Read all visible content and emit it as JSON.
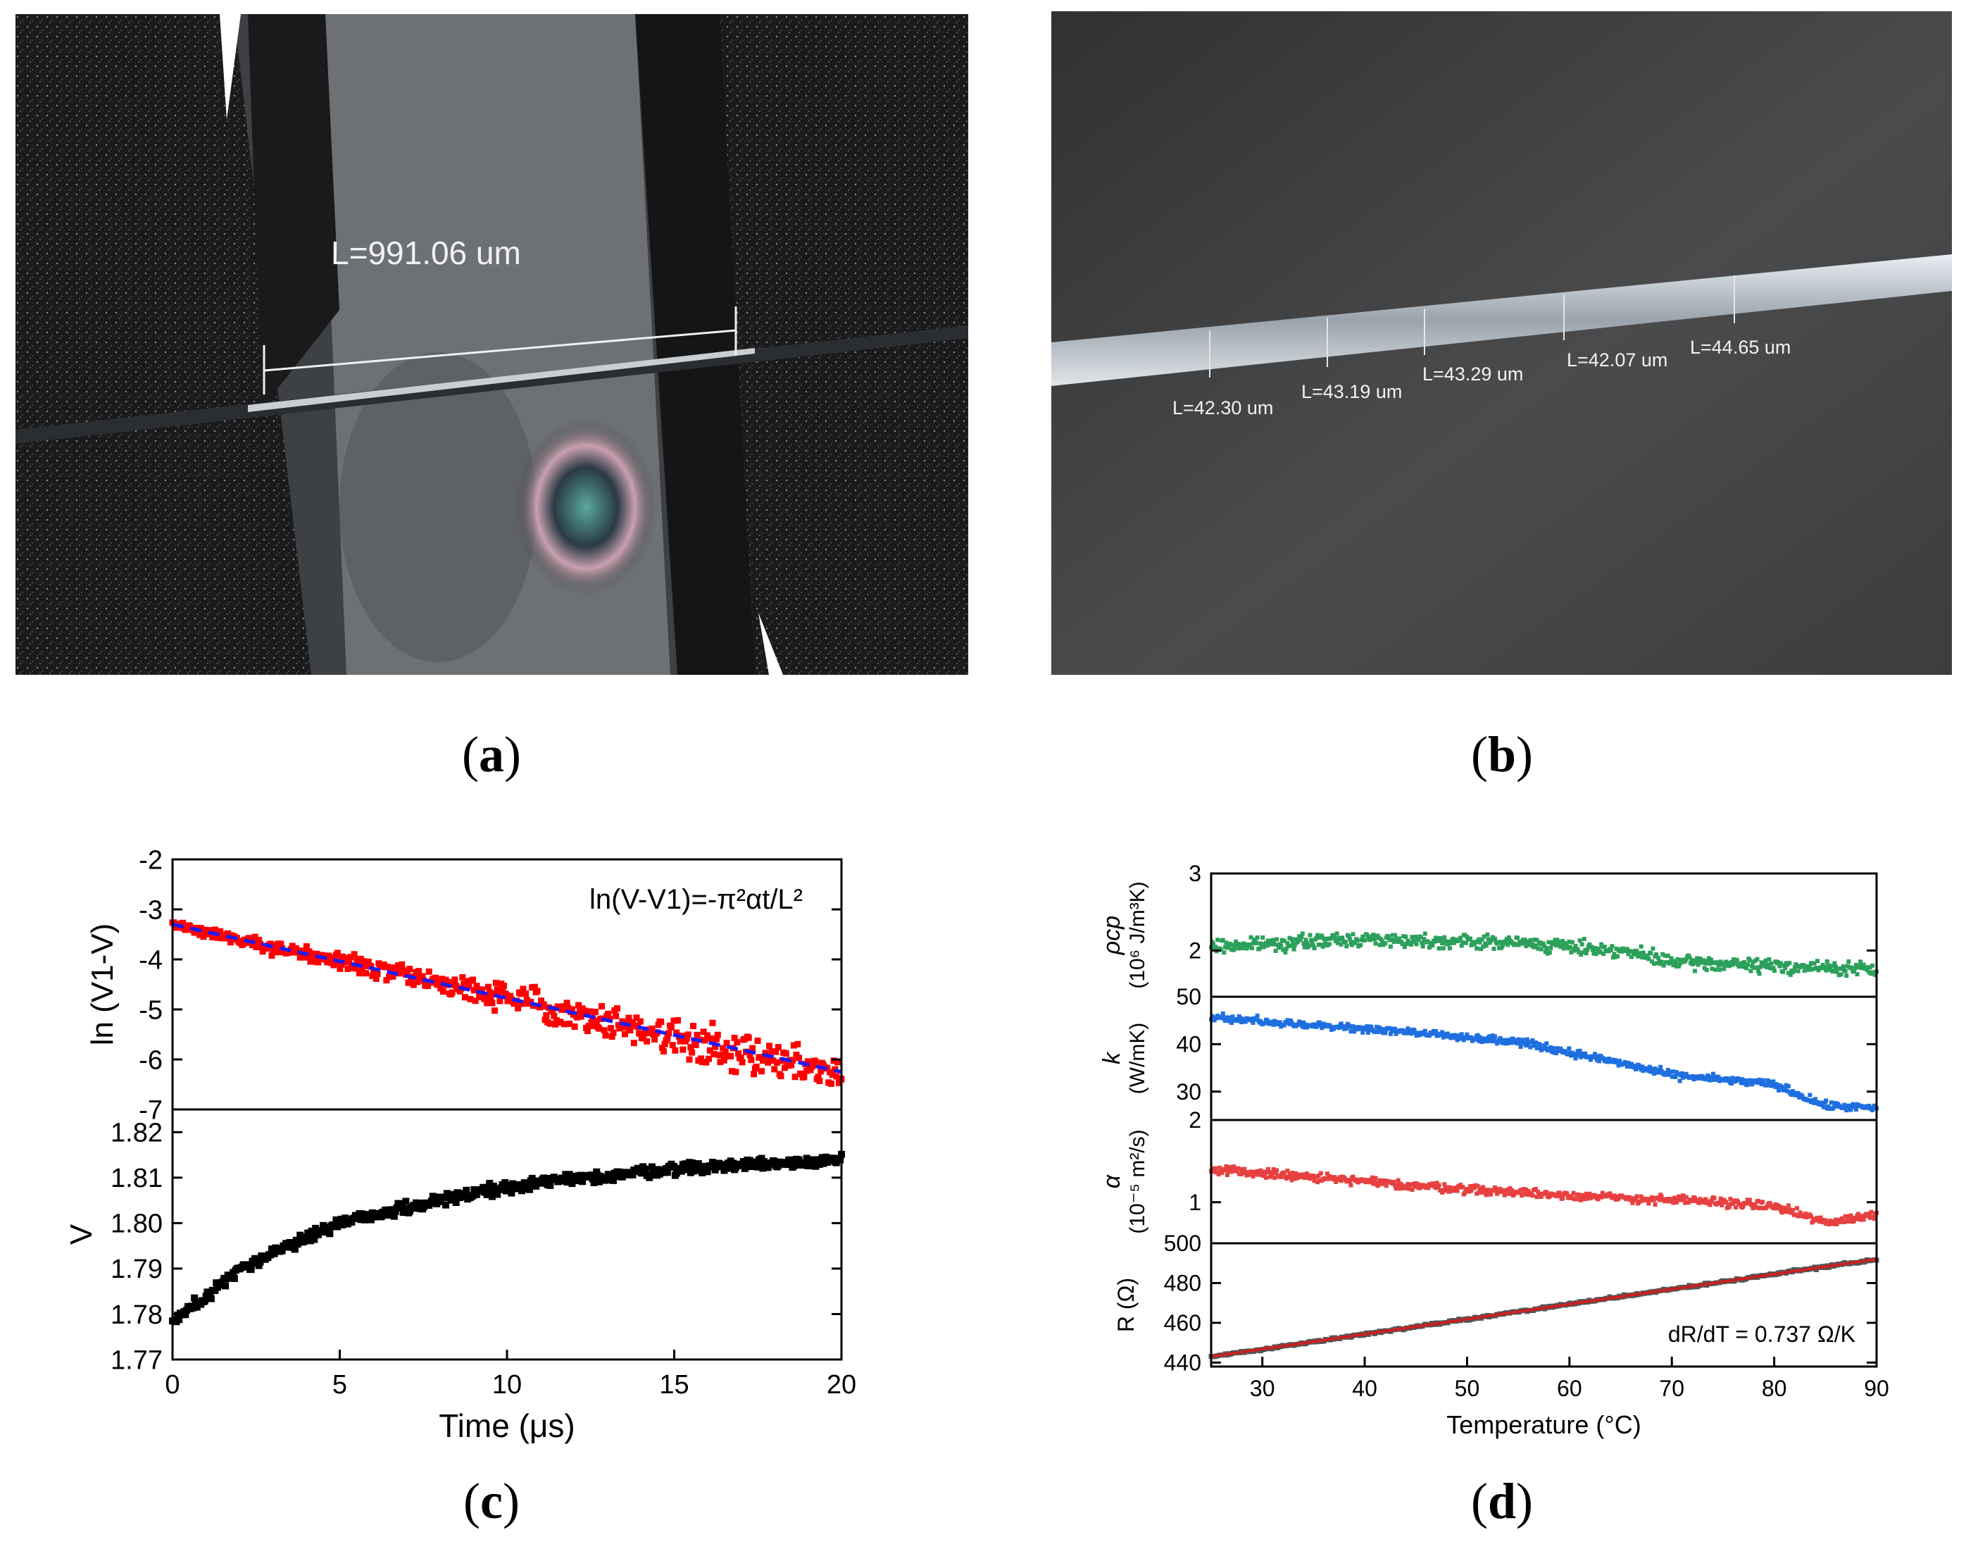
{
  "figure": {
    "captions": {
      "a": "a",
      "b": "b",
      "c": "c",
      "d": "d"
    }
  },
  "panel_a": {
    "measurement": "L=991.06 um"
  },
  "panel_b": {
    "measurements": [
      "L=42.30 um",
      "L=43.19 um",
      "L=43.29 um",
      "L=42.07 um",
      "L=44.65 um"
    ]
  },
  "chart_data": [
    {
      "panel": "c-top",
      "type": "scatter",
      "ylabel": "ln (V1-V)",
      "annotation": "ln(V-V1)=-π²αt/L²",
      "xlim": [
        0,
        20
      ],
      "ylim": [
        -7,
        -2
      ],
      "yticks": [
        "-2",
        "-3",
        "-4",
        "-5",
        "-6",
        "-7"
      ],
      "series": [
        {
          "color": "#ff0000",
          "marker": "square",
          "x_range": [
            0,
            20
          ],
          "trend": [
            [
              0,
              -3.3
            ],
            [
              5,
              -4.05
            ],
            [
              10,
              -4.75
            ],
            [
              15,
              -5.55
            ],
            [
              20,
              -6.3
            ]
          ]
        },
        {
          "color": "#1a1aff",
          "style": "dashed",
          "x": [
            0,
            20
          ],
          "y": [
            -3.3,
            -6.25
          ]
        }
      ]
    },
    {
      "panel": "c-bottom",
      "type": "scatter",
      "xlabel": "Time (μs)",
      "ylabel": "V",
      "xlim": [
        0,
        20
      ],
      "ylim": [
        1.77,
        1.825
      ],
      "xticks": [
        "0",
        "5",
        "10",
        "15",
        "20"
      ],
      "yticks": [
        "1.82",
        "1.81",
        "1.80",
        "1.79",
        "1.78",
        "1.77"
      ],
      "series": [
        {
          "color": "#000000",
          "marker": "square",
          "trend": [
            [
              0,
              1.778
            ],
            [
              2,
              1.79
            ],
            [
              5,
              1.8
            ],
            [
              8,
              1.805
            ],
            [
              10,
              1.808
            ],
            [
              15,
              1.812
            ],
            [
              20,
              1.814
            ]
          ]
        }
      ]
    },
    {
      "panel": "d-rhocp",
      "type": "scatter",
      "ylabel_lines": [
        "ρcp",
        "(10⁶ J/m³K)"
      ],
      "xlim": [
        25,
        90
      ],
      "ylim": [
        1.4,
        3.0
      ],
      "yticks": [
        "3",
        "2"
      ],
      "series": [
        {
          "color": "#2ca05a",
          "trend": [
            [
              25,
              2.05
            ],
            [
              40,
              2.15
            ],
            [
              55,
              2.1
            ],
            [
              65,
              2.0
            ],
            [
              70,
              1.85
            ],
            [
              80,
              1.8
            ],
            [
              90,
              1.75
            ]
          ]
        }
      ]
    },
    {
      "panel": "d-k",
      "type": "scatter",
      "ylabel_lines": [
        "k",
        "(W/mK)"
      ],
      "xlim": [
        25,
        90
      ],
      "ylim": [
        24,
        50
      ],
      "yticks": [
        "50",
        "40",
        "30"
      ],
      "series": [
        {
          "color": "#1f6fe0",
          "trend": [
            [
              25,
              45.5
            ],
            [
              35,
              44
            ],
            [
              45,
              42.5
            ],
            [
              55,
              40.5
            ],
            [
              65,
              36
            ],
            [
              70,
              33.5
            ],
            [
              80,
              31.5
            ],
            [
              85,
              27
            ],
            [
              90,
              26.5
            ]
          ]
        }
      ]
    },
    {
      "panel": "d-alpha",
      "type": "scatter",
      "ylabel_lines": [
        "α",
        "(10⁻⁵ m²/s)"
      ],
      "xlim": [
        25,
        90
      ],
      "ylim": [
        0.5,
        2.0
      ],
      "yticks": [
        "2",
        "1"
      ],
      "series": [
        {
          "color": "#e84040",
          "trend": [
            [
              25,
              1.4
            ],
            [
              35,
              1.3
            ],
            [
              45,
              1.2
            ],
            [
              55,
              1.12
            ],
            [
              65,
              1.05
            ],
            [
              75,
              1.0
            ],
            [
              80,
              0.95
            ],
            [
              85,
              0.75
            ],
            [
              90,
              0.85
            ]
          ]
        }
      ]
    },
    {
      "panel": "d-R",
      "type": "scatter",
      "xlabel": "Temperature (°C)",
      "ylabel": "R (Ω)",
      "annotation": "dR/dT = 0.737 Ω/K",
      "xlim": [
        25,
        90
      ],
      "ylim": [
        438,
        500
      ],
      "xticks": [
        "30",
        "40",
        "50",
        "60",
        "70",
        "80",
        "90"
      ],
      "yticks": [
        "500",
        "480",
        "460",
        "440"
      ],
      "series": [
        {
          "color": "#555555",
          "x": [
            25,
            90
          ],
          "y": [
            443,
            492
          ]
        },
        {
          "color": "#cc1f1f",
          "style": "line",
          "x": [
            25,
            90
          ],
          "y": [
            443,
            492
          ]
        }
      ]
    }
  ]
}
